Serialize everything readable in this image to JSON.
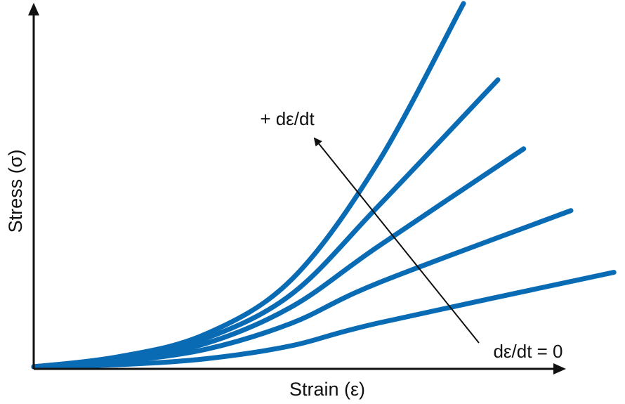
{
  "chart_data": {
    "type": "line",
    "title": "",
    "xlabel": "Strain (ε)",
    "ylabel": "Stress (σ)",
    "xlim": [
      0,
      1
    ],
    "ylim": [
      0,
      1
    ],
    "grid": false,
    "ticks": false,
    "legend": "none",
    "series_color": "#0a6bb5",
    "axis_color": "#111111",
    "series": [
      {
        "x": [
          0,
          0.2,
          0.4,
          0.6,
          0.8,
          1.0
        ],
        "y": [
          0,
          0.028,
          0.09,
          0.24,
          0.56,
          1.0
        ]
      },
      {
        "x": [
          0,
          0.2,
          0.4,
          0.6,
          0.8,
          1.08
        ],
        "y": [
          0,
          0.024,
          0.078,
          0.2,
          0.44,
          0.79
        ]
      },
      {
        "x": [
          0,
          0.2,
          0.4,
          0.6,
          0.8,
          1.14
        ],
        "y": [
          0,
          0.02,
          0.064,
          0.165,
          0.33,
          0.6
        ]
      },
      {
        "x": [
          0,
          0.2,
          0.4,
          0.6,
          0.8,
          1.25
        ],
        "y": [
          0,
          0.015,
          0.048,
          0.12,
          0.23,
          0.43
        ]
      },
      {
        "x": [
          0,
          0.2,
          0.4,
          0.6,
          0.8,
          1.35
        ],
        "y": [
          0,
          0.006,
          0.022,
          0.058,
          0.12,
          0.26
        ]
      }
    ],
    "annotations": {
      "top_label": "+ dε/dt",
      "bottom_label": "dε/dt = 0"
    }
  }
}
